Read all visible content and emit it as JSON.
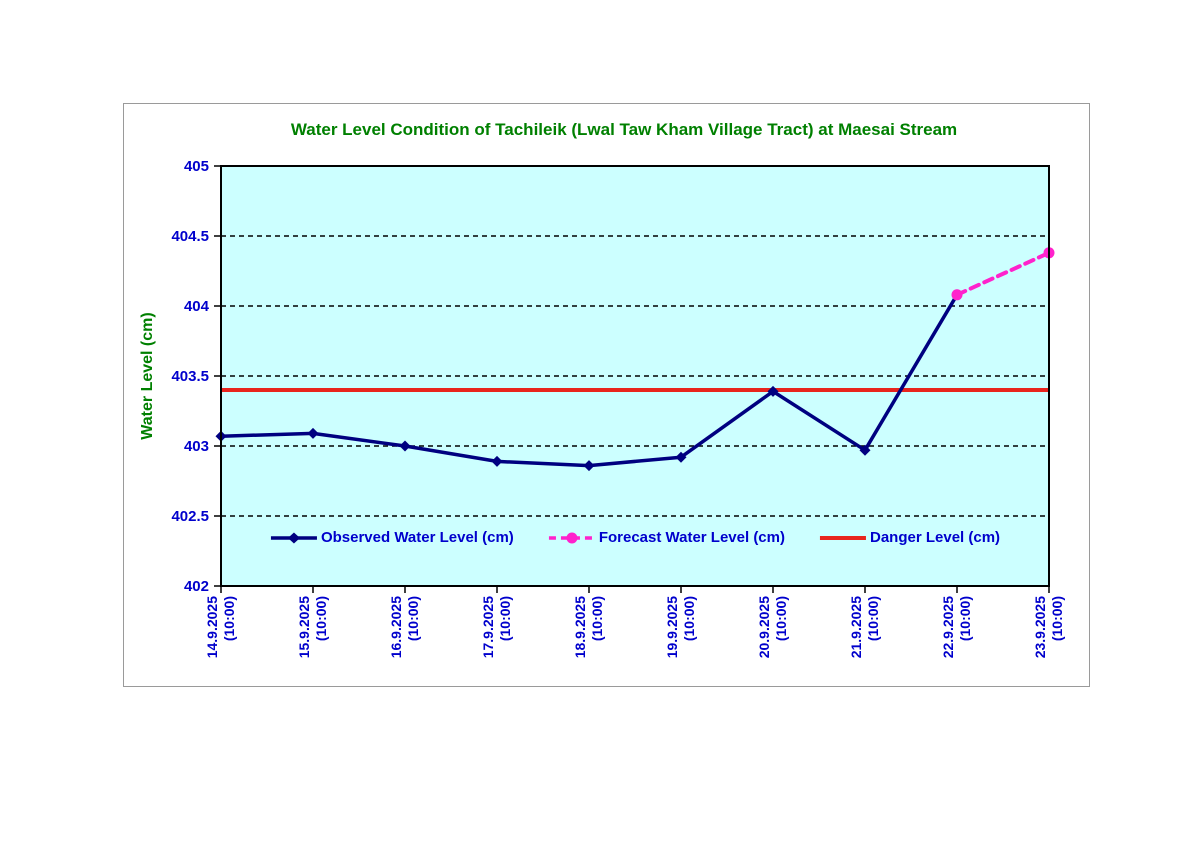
{
  "window": {
    "background": "#ffffff"
  },
  "colors": {
    "title": "#008000",
    "axis_text": "#0000cc",
    "axis_line": "#000000",
    "plot_bg": "#ccffff",
    "grid": "#000000",
    "frame_border": "#9a9a9a"
  },
  "chart_data": {
    "type": "line",
    "title": "Water Level Condition of Tachileik (Lwal Taw Kham Village Tract) at Maesai Stream",
    "xlabel": "",
    "ylabel": "Water Level (cm)",
    "ylim": [
      402,
      405
    ],
    "ytick_step": 0.5,
    "grid": "horizontal dashed",
    "legend_position": "inside bottom center",
    "categories": [
      "14.9.2025",
      "15.9.2025",
      "16.9.2025",
      "17.9.2025",
      "18.9.2025",
      "19.9.2025",
      "20.9.2025",
      "21.9.2025",
      "22.9.2025",
      "23.9.2025"
    ],
    "category_time_suffix": "(10:00)",
    "series": [
      {
        "key": "observed",
        "name": "Observed Water Level (cm)",
        "color": "#000080",
        "marker": "diamond",
        "line_style": "solid",
        "values": [
          403.07,
          403.09,
          403.0,
          402.89,
          402.86,
          402.92,
          403.39,
          402.97,
          404.08,
          null
        ]
      },
      {
        "key": "forecast",
        "name": "Forecast Water Level (cm)",
        "color": "#ff22cc",
        "marker": "circle",
        "line_style": "dashed",
        "values": [
          null,
          null,
          null,
          null,
          null,
          null,
          null,
          null,
          404.08,
          404.38
        ]
      },
      {
        "key": "danger",
        "name": "Danger Level (cm)",
        "color": "#e8251d",
        "marker": "none",
        "line_style": "solid",
        "constant": 403.4
      }
    ]
  }
}
